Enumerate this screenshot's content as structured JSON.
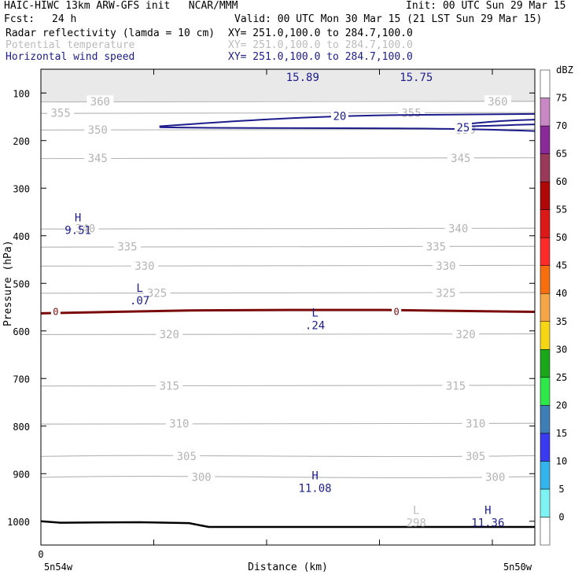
{
  "header": {
    "model": "HAIC-HIWC 13km ARW-GFS init   NCAR/MMM",
    "init": "Init: 00 UTC Sun 29 Mar 15",
    "fcst_label": "Fcst:",
    "fcst_value": "24 h",
    "valid": "Valid: 00 UTC Mon 30 Mar 15 (21 LST Sun 29 Mar 15)",
    "fields": [
      {
        "name": "Radar reflectivity (lamda = 10 cm)",
        "xy": "XY= 251.0,100.0 to 284.7,100.0",
        "color": "#000000"
      },
      {
        "name": "Potential temperature",
        "xy": "XY= 251.0,100.0 to 284.7,100.0",
        "color": "#bbbbbb"
      },
      {
        "name": "Horizontal wind speed",
        "xy": "XY= 251.0,100.0 to 284.7,100.0",
        "color": "#1c1c8c"
      }
    ]
  },
  "chart_data": {
    "type": "cross-section",
    "ylabel": "Pressure (hPa)",
    "xlabel": "Distance (km)",
    "x_tick_labels": [
      "0"
    ],
    "y_ticks": [
      100,
      200,
      300,
      400,
      500,
      600,
      700,
      800,
      900,
      1000
    ],
    "ylim": [
      1050,
      50
    ],
    "xlim": [
      0,
      1
    ],
    "x_end_labels": {
      "left": "5n54w",
      "right": "5n50w"
    },
    "colorbar": {
      "unit": "dBZ",
      "levels": [
        0,
        5,
        10,
        15,
        20,
        25,
        30,
        35,
        40,
        45,
        50,
        55,
        60,
        65,
        70,
        75
      ],
      "colors": [
        "#ffffff",
        "#7df3f3",
        "#34b4ed",
        "#3a3af0",
        "#3d7eb6",
        "#2ee84a",
        "#1aa81a",
        "#f6d614",
        "#f4a646",
        "#f66e0e",
        "#ff2a2a",
        "#dc1818",
        "#b00808",
        "#9a3a5a",
        "#8a2a98",
        "#c888c4",
        "#ffffff"
      ]
    },
    "theta_isentropes": [
      {
        "value": 300,
        "p": 907,
        "label_positions": [
          0.325,
          0.92
        ]
      },
      {
        "value": 305,
        "p": 863,
        "label_positions": [
          0.295,
          0.88
        ]
      },
      {
        "value": 310,
        "p": 795,
        "label_positions": [
          0.28,
          0.88
        ]
      },
      {
        "value": 315,
        "p": 715,
        "label_positions": [
          0.26,
          0.84
        ]
      },
      {
        "value": 320,
        "p": 607,
        "label_positions": [
          0.26,
          0.86
        ]
      },
      {
        "value": 325,
        "p": 520,
        "label_positions": [
          0.235,
          0.82
        ]
      },
      {
        "value": 330,
        "p": 463,
        "label_positions": [
          0.21,
          0.82
        ]
      },
      {
        "value": 335,
        "p": 423,
        "label_positions": [
          0.175,
          0.8
        ]
      },
      {
        "value": 340,
        "p": 385,
        "label_positions": [
          0.09,
          0.845
        ]
      },
      {
        "value": 345,
        "p": 237,
        "label_positions": [
          0.115,
          0.85
        ]
      },
      {
        "value": 350,
        "p": 177,
        "label_positions": [
          0.115,
          0.86
        ]
      },
      {
        "value": 355,
        "p": 142,
        "label_positions": [
          0.04,
          0.75
        ]
      },
      {
        "value": 360,
        "p": 118,
        "label_positions": [
          0.12,
          0.925
        ]
      }
    ],
    "wind_contours": [
      {
        "value": 20,
        "label_x": 0.605,
        "label_p": 148
      },
      {
        "value": 25,
        "label_x": 0.855,
        "label_p": 172
      }
    ],
    "reflectivity_zero_contour": {
      "value": 0,
      "label_positions": [
        0.03,
        0.72
      ]
    },
    "highs_lows": [
      {
        "type": "H",
        "value": "9.51",
        "x": 0.075,
        "p": 375,
        "color": "#1c1c8c"
      },
      {
        "type": "L",
        "value": ".07",
        "x": 0.2,
        "p": 523,
        "color": "#1c1c8c"
      },
      {
        "type": "L",
        "value": ".24",
        "x": 0.555,
        "p": 575,
        "color": "#1c1c8c"
      },
      {
        "type": "H",
        "value": "11.08",
        "x": 0.555,
        "p": 917,
        "color": "#1c1c8c"
      },
      {
        "type": "L",
        "value": "298",
        "x": 0.76,
        "p": 990,
        "color": "#bbbbbb"
      },
      {
        "type": "H",
        "value": "11.36",
        "x": 0.905,
        "p": 990,
        "color": "#1c1c8c"
      }
    ],
    "top_values": [
      {
        "value": "15.89",
        "x": 0.53
      },
      {
        "value": "15.75",
        "x": 0.76
      }
    ],
    "terrain": [
      [
        0,
        1000
      ],
      [
        0.04,
        1003
      ],
      [
        0.2,
        1002
      ],
      [
        0.3,
        1004
      ],
      [
        0.34,
        1012
      ],
      [
        1,
        1012
      ]
    ]
  }
}
